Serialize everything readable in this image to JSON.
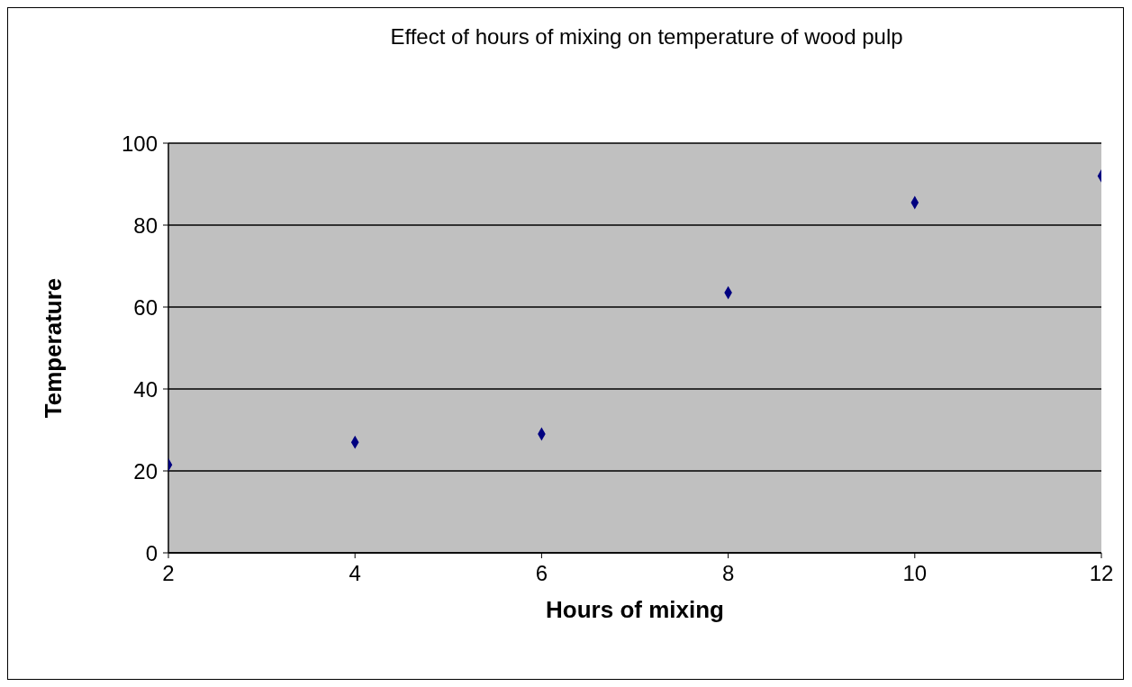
{
  "chart_data": {
    "type": "scatter",
    "title": "Effect of hours of mixing on temperature of wood pulp",
    "xlabel": "Hours of mixing",
    "ylabel": "Temperature",
    "x": [
      2,
      4,
      6,
      8,
      10,
      12
    ],
    "series": [
      {
        "color": "#000080",
        "values": [
          21.5,
          27,
          29,
          63.5,
          85.5,
          92
        ]
      }
    ],
    "xlim": [
      2,
      12
    ],
    "xticks": [
      2,
      4,
      6,
      8,
      10,
      12
    ],
    "ylim": [
      0,
      100
    ],
    "yticks": [
      0,
      20,
      40,
      60,
      80,
      100
    ],
    "grid": "y",
    "marker": "diamond",
    "legend": false
  }
}
